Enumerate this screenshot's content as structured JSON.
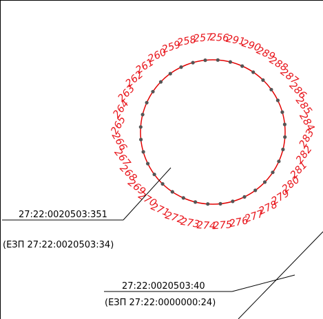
{
  "boundary_color": "#e10000",
  "vertex_color": "#555555",
  "label_color": "#e8141a",
  "line_color": "#000000",
  "points": [
    "256",
    "291",
    "290",
    "289",
    "288",
    "287",
    "286",
    "285",
    "284",
    "283",
    "282",
    "281",
    "280",
    "279",
    "278",
    "277",
    "276",
    "275",
    "274",
    "273",
    "272",
    "271",
    "270",
    "269",
    "268",
    "267",
    "266",
    "265",
    "264",
    "263",
    "262",
    "261",
    "260",
    "259",
    "258",
    "257"
  ],
  "parcel_circle": {
    "cadastral_number": "27:22:0020503:351",
    "ezp_note": "(ЕЗП 27:22:0020503:34)"
  },
  "parcel_outer": {
    "cadastral_number": "27:22:0020503:40",
    "ezp_note": "(ЕЗП 27:22:0000000:24)"
  }
}
